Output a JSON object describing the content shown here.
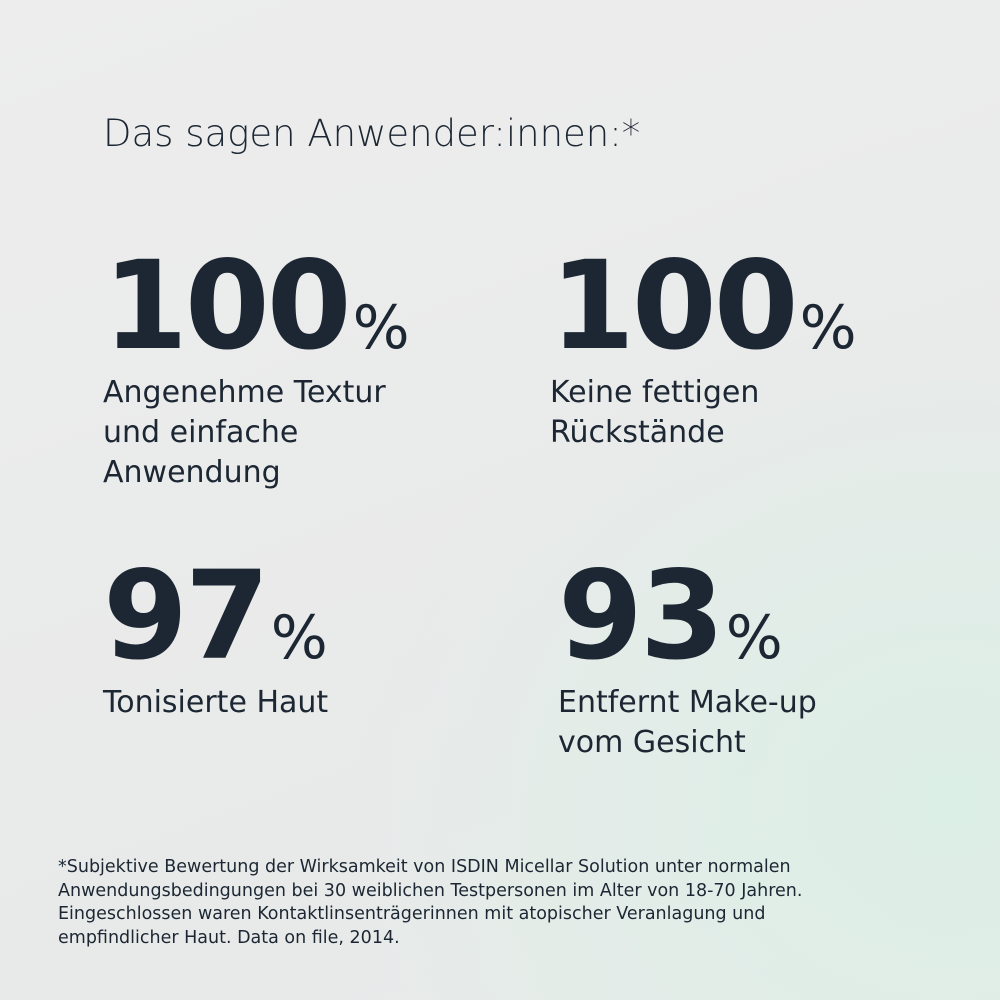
{
  "title": "Das sagen Anwender:innen:*",
  "stats": [
    {
      "number": "100",
      "unit": "%",
      "label": [
        "Angenehme Textur",
        "und einfache",
        "Anwendung"
      ]
    },
    {
      "number": "100",
      "unit": "%",
      "label": [
        "Keine fettigen",
        "Rückstände"
      ]
    },
    {
      "number": "97",
      "unit": "%",
      "label": [
        "Tonisierte Haut"
      ]
    },
    {
      "number": "93",
      "unit": "%",
      "label": [
        "Entfernt Make-up",
        "vom Gesicht"
      ]
    }
  ],
  "footnote": [
    "*Subjektive Bewertung der Wirksamkeit von ISDIN Micellar Solution unter normalen",
    "Anwendungsbedingungen bei 30 weiblichen Testpersonen im Alter von 18-70 Jahren.",
    "Eingeschlossen waren Kontaktlinsenträgerinnen mit atopischer Veranlagung und",
    "empfindlicher Haut. Data on file, 2014."
  ]
}
